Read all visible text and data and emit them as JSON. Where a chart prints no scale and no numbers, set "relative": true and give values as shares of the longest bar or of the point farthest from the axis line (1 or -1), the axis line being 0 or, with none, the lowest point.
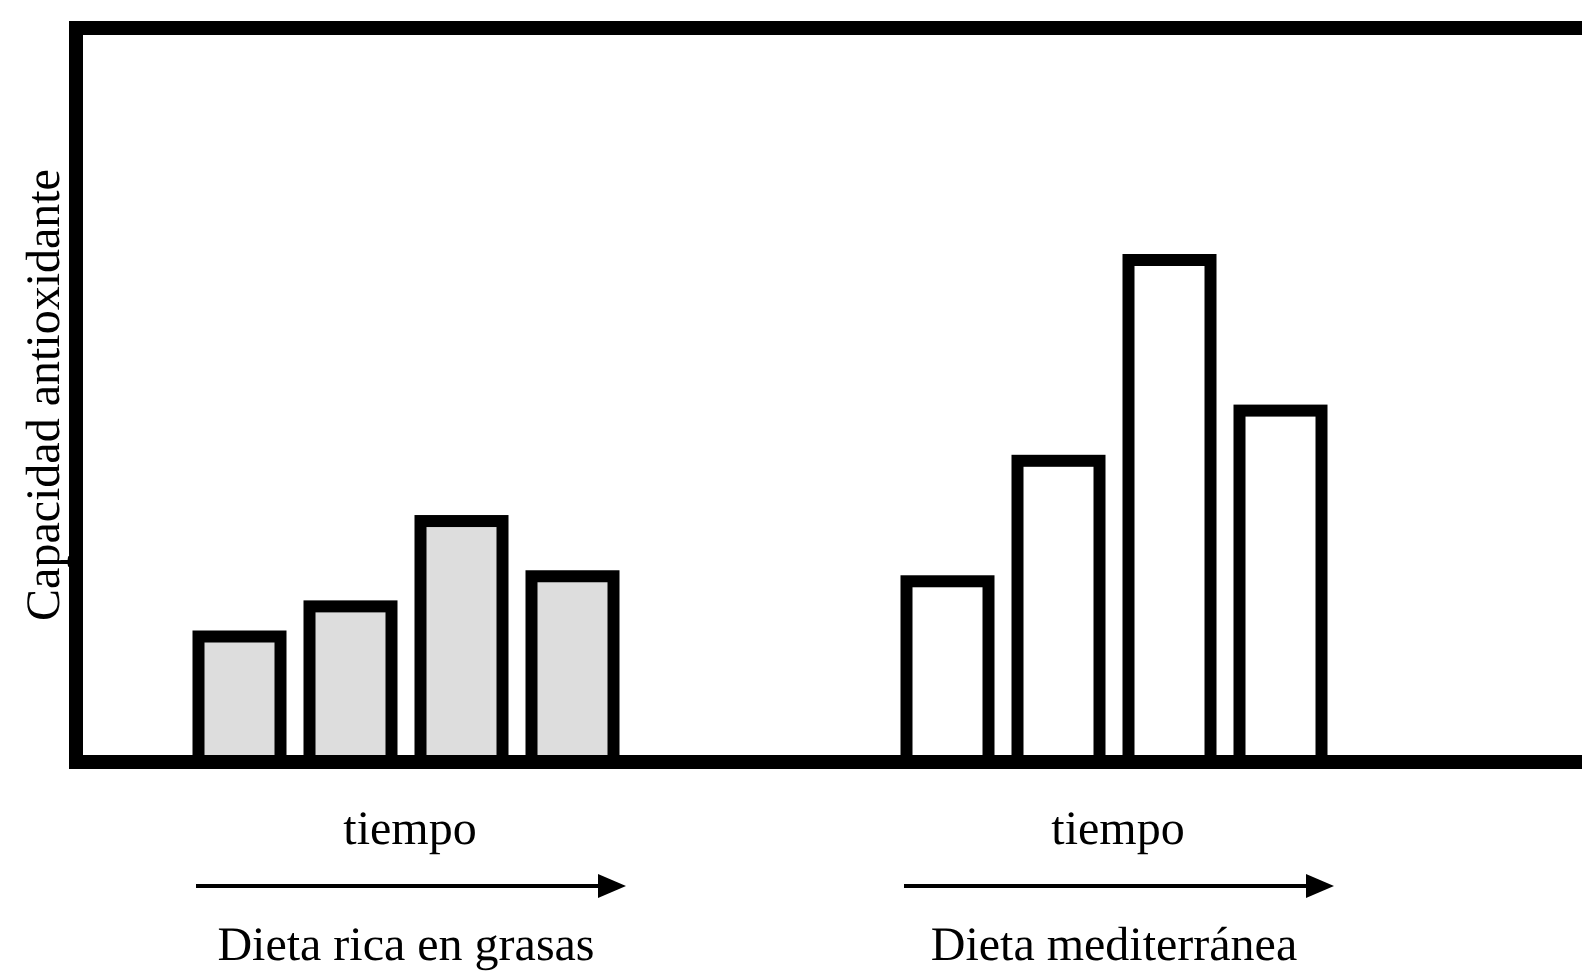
{
  "chart_data": {
    "type": "bar",
    "relative": true,
    "ylabel": "Capacidad antioxidante",
    "categories": [
      "Dieta rica en grasas",
      "Dieta mediterránea"
    ],
    "series": [
      {
        "colors": [
          "#dddddd",
          "#ffffff"
        ],
        "values": [
          0.25,
          0.36
        ]
      },
      {
        "colors": [
          "#dddddd",
          "#ffffff"
        ],
        "values": [
          0.31,
          0.6
        ]
      },
      {
        "colors": [
          "#dddddd",
          "#ffffff"
        ],
        "values": [
          0.48,
          1
        ]
      },
      {
        "colors": [
          "#dddddd",
          "#ffffff"
        ],
        "values": [
          0.37,
          0.7
        ]
      }
    ],
    "annotations": [
      "tiempo",
      "tiempo"
    ]
  }
}
